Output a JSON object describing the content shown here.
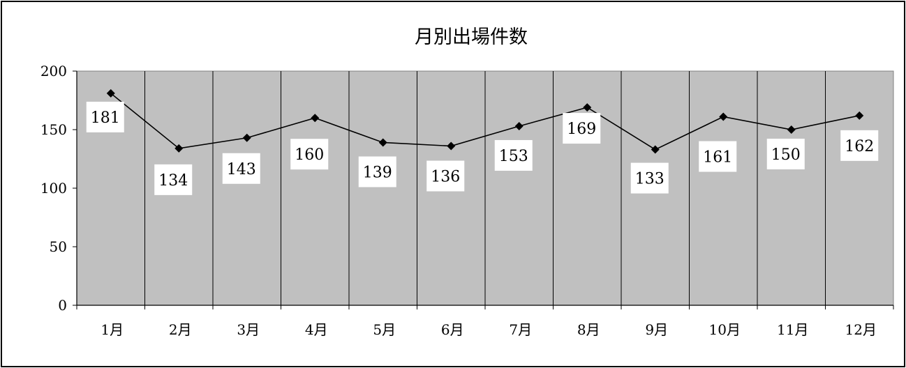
{
  "chart_data": {
    "type": "line",
    "title": "月別出場件数",
    "xlabel": "",
    "ylabel": "",
    "categories": [
      "1月",
      "2月",
      "3月",
      "4月",
      "5月",
      "6月",
      "7月",
      "8月",
      "9月",
      "10月",
      "11月",
      "12月"
    ],
    "series": [
      {
        "values": [
          181,
          134,
          143,
          160,
          139,
          136,
          153,
          169,
          133,
          161,
          150,
          162
        ]
      }
    ],
    "ylim": [
      0,
      200
    ],
    "yticks": [
      0,
      50,
      100,
      150,
      200
    ],
    "ytick_labels": [
      "0",
      "50",
      "100",
      "150",
      "200"
    ],
    "data_labels": [
      "181",
      "134",
      "143",
      "160",
      "139",
      "136",
      "153",
      "169",
      "133",
      "161",
      "150",
      "162"
    ],
    "marker": "diamond",
    "grid": "vertical",
    "legend": "none",
    "colors": {
      "plot_background": "#c0c0c0",
      "line": "#000000",
      "label_background": "#ffffff"
    }
  }
}
